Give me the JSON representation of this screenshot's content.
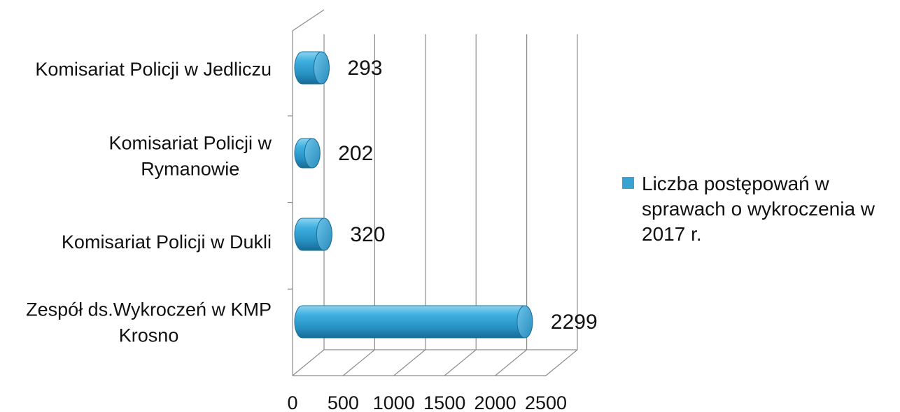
{
  "chart_data": {
    "type": "bar",
    "orientation": "horizontal",
    "style": "3d-cylinder",
    "categories": [
      "Komisariat Policji w Jedliczu",
      "Komisariat Policji w Rymanowie",
      "Komisariat Policji w Dukli",
      "Zespół ds.Wykroczeń w KMP Krosno"
    ],
    "category_label_lines": [
      [
        "Komisariat Policji w Jedliczu"
      ],
      [
        "Komisariat Policji w",
        "Rymanowie"
      ],
      [
        "Komisariat Policji w Dukli"
      ],
      [
        "Zespół ds.Wykroczeń w KMP",
        "Krosno"
      ]
    ],
    "series": [
      {
        "name": "Liczba postępowań w sprawach o wykroczenia w 2017 r.",
        "values": [
          293,
          202,
          320,
          2299
        ],
        "color": "#3aa2d3"
      }
    ],
    "data_labels": [
      "293",
      "202",
      "320",
      "2299"
    ],
    "xlim": [
      0,
      2500
    ],
    "x_ticks": [
      "0",
      "500",
      "1000",
      "1500",
      "2000",
      "2500"
    ],
    "grid": "vertical",
    "legend_position": "right",
    "legend_lines": [
      "Liczba postępowań w",
      "sprawach o wykroczenia w",
      "2017 r."
    ]
  }
}
